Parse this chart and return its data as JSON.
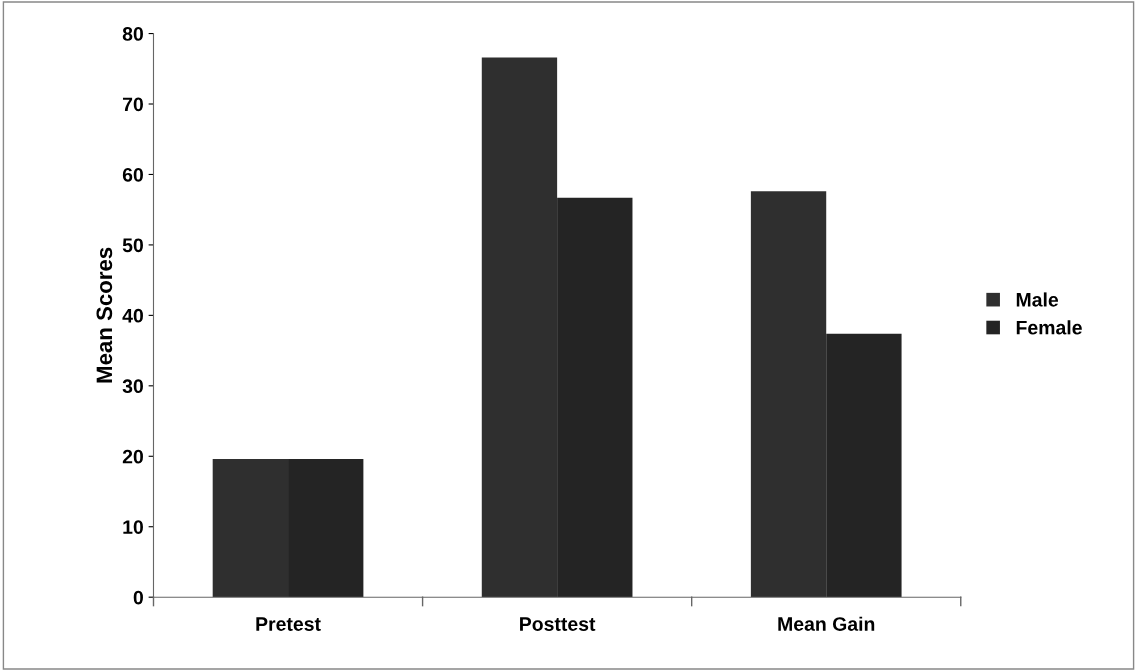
{
  "chart_data": {
    "type": "bar",
    "ylabel": "Mean Scores",
    "categories": [
      "Pretest",
      "Posttest",
      "Mean Gain"
    ],
    "series": [
      {
        "name": "Male",
        "color": "#2f2f2f",
        "values": [
          19.6,
          76.6,
          57.6
        ]
      },
      {
        "name": "Female",
        "color": "#242424",
        "values": [
          19.6,
          56.7,
          37.4
        ]
      }
    ],
    "ylim": [
      0,
      80
    ],
    "yticks": [
      0,
      10,
      20,
      30,
      40,
      50,
      60,
      70,
      80
    ],
    "grid": false,
    "legend": "right"
  }
}
